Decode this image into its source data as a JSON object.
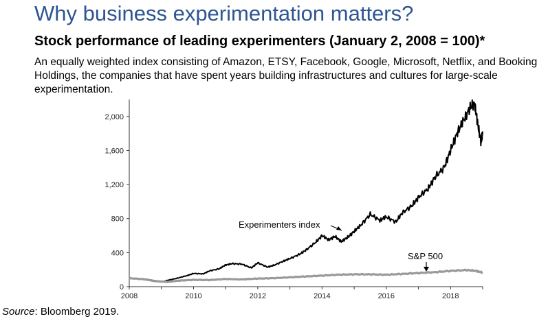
{
  "header": {
    "title": "Why business experimentation matters?",
    "subtitle": "Stock performance of leading experimenters (January 2, 2008 = 100)*",
    "description": "An equally weighted index consisting of Amazon, ETSY, Facebook, Google, Microsoft, Netflix, and Booking Holdings, the companies that have spent years building infrastructures and cultures for large-scale experimentation."
  },
  "footer": {
    "source_label": "Source",
    "source_text": ": Bloomberg 2019."
  },
  "chart_data": {
    "type": "line",
    "title": "",
    "xlabel": "",
    "ylabel": "",
    "xlim": [
      2008,
      2019
    ],
    "ylim": [
      0,
      2200
    ],
    "x_ticks": [
      "2008",
      "2010",
      "2012",
      "2014",
      "2016",
      "2018"
    ],
    "y_ticks": [
      "0",
      "400",
      "800",
      "1,200",
      "1,600",
      "2,000"
    ],
    "grid": false,
    "annotations": [
      "Experimenters index",
      "S&P 500"
    ],
    "series": [
      {
        "name": "Experimenters index",
        "color": "#000000",
        "x": [
          2008.0,
          2008.5,
          2008.8,
          2009.0,
          2009.2,
          2009.5,
          2009.8,
          2010.0,
          2010.3,
          2010.5,
          2010.8,
          2011.0,
          2011.2,
          2011.5,
          2011.8,
          2012.0,
          2012.3,
          2012.5,
          2012.8,
          2013.0,
          2013.3,
          2013.5,
          2013.8,
          2014.0,
          2014.2,
          2014.4,
          2014.6,
          2014.8,
          2015.0,
          2015.2,
          2015.5,
          2015.8,
          2016.0,
          2016.3,
          2016.5,
          2016.8,
          2017.0,
          2017.3,
          2017.5,
          2017.8,
          2018.0,
          2018.2,
          2018.4,
          2018.6,
          2018.75,
          2018.85,
          2018.95,
          2019.0
        ],
        "values": [
          100,
          90,
          70,
          55,
          75,
          100,
          130,
          155,
          150,
          185,
          210,
          255,
          270,
          265,
          220,
          280,
          230,
          250,
          300,
          330,
          380,
          430,
          520,
          600,
          550,
          590,
          530,
          580,
          650,
          720,
          850,
          780,
          820,
          760,
          870,
          950,
          1050,
          1150,
          1280,
          1400,
          1600,
          1800,
          1950,
          2100,
          2150,
          1900,
          1700,
          1800
        ]
      },
      {
        "name": "S&P 500",
        "color": "#999999",
        "x": [
          2008.0,
          2008.5,
          2008.8,
          2009.0,
          2009.2,
          2009.5,
          2010.0,
          2010.5,
          2011.0,
          2011.5,
          2012.0,
          2012.5,
          2013.0,
          2013.5,
          2014.0,
          2014.5,
          2015.0,
          2015.5,
          2016.0,
          2016.5,
          2017.0,
          2017.5,
          2018.0,
          2018.5,
          2018.8,
          2019.0
        ],
        "values": [
          100,
          85,
          65,
          60,
          55,
          70,
          80,
          78,
          90,
          85,
          95,
          100,
          110,
          120,
          130,
          140,
          145,
          145,
          140,
          150,
          160,
          170,
          185,
          195,
          185,
          165
        ]
      }
    ]
  }
}
